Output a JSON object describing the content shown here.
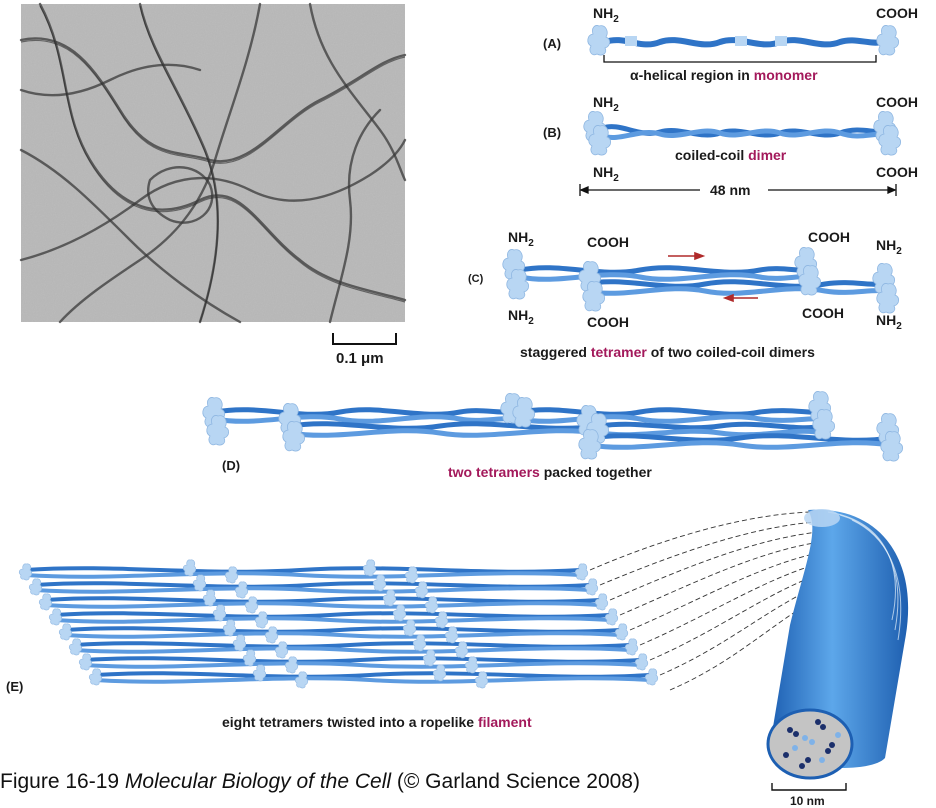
{
  "panel_a": {
    "label": "(A)",
    "nh2": "NH",
    "nh2_sub": "2",
    "cooh": "COOH",
    "caption_prefix": "α-helical region in ",
    "caption_highlight": "monomer"
  },
  "panel_b": {
    "label": "(B)",
    "nh2": "NH",
    "nh2_sub": "2",
    "cooh": "COOH",
    "caption_prefix": "coiled-coil ",
    "caption_highlight": "dimer",
    "length": "48 nm"
  },
  "panel_c": {
    "label": "(C)",
    "nh2": "NH",
    "nh2_sub": "2",
    "cooh": "COOH",
    "caption_prefix": "staggered ",
    "caption_highlight": "tetramer",
    "caption_suffix": " of two coiled-coil dimers"
  },
  "panel_d": {
    "label": "(D)",
    "caption_highlight": "two tetramers",
    "caption_suffix": " packed together"
  },
  "panel_e": {
    "label": "(E)",
    "caption_prefix": "eight tetramers twisted into a ropelike ",
    "caption_highlight": "filament",
    "diameter": "10 nm"
  },
  "micrograph": {
    "scale_bar": "0.1 μm"
  },
  "figure_caption": {
    "prefix": "Figure 16-19  ",
    "title": "Molecular Biology of the Cell",
    "suffix": " (© Garland Science 2008)"
  },
  "colors": {
    "rod": "#2f74c7",
    "rod_light": "#5d9be0",
    "head": "#b8d6f3",
    "highlight": "#a3195b"
  }
}
